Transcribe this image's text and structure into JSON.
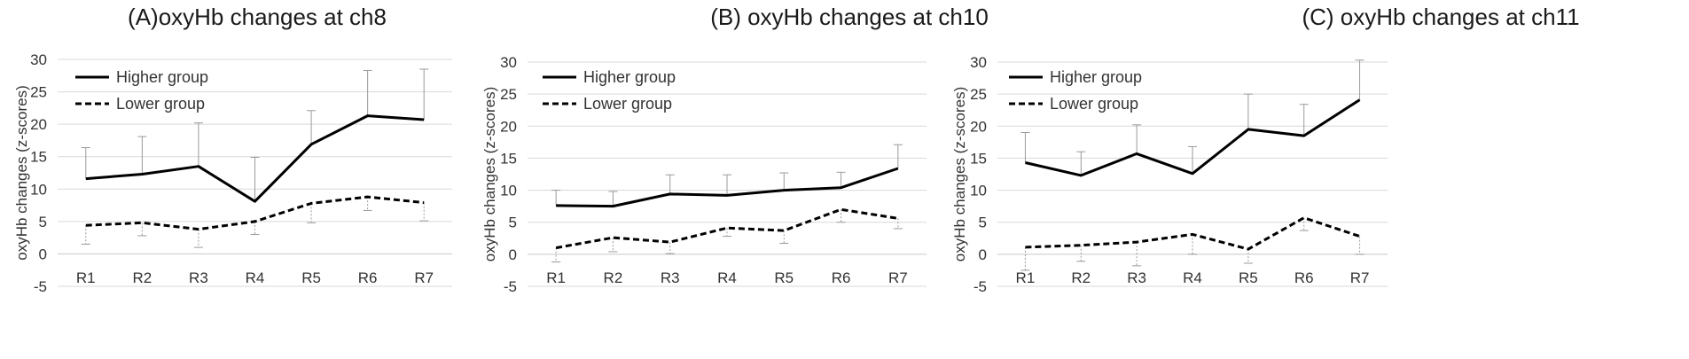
{
  "chart_data": [
    {
      "type": "line",
      "title": "(A)oxyHb changes at ch8",
      "ylabel": "oxyHb changes (z-scores)",
      "categories": [
        "R1",
        "R2",
        "R3",
        "R4",
        "R5",
        "R6",
        "R7"
      ],
      "yticks": [
        "-5",
        "0",
        "5",
        "10",
        "15",
        "20",
        "25",
        "30"
      ],
      "ylim": [
        -5,
        30
      ],
      "grid": "horizontal",
      "legend_position": "top-left",
      "series": [
        {
          "name": "Higher group",
          "style": "solid",
          "values": [
            11.6,
            12.3,
            13.5,
            8.1,
            16.9,
            21.3,
            20.7
          ],
          "error": [
            4.8,
            5.8,
            6.7,
            6.8,
            5.2,
            7.0,
            7.8
          ]
        },
        {
          "name": "Lower group",
          "style": "dashed",
          "values": [
            4.4,
            4.8,
            3.8,
            5.0,
            7.8,
            8.8,
            7.9
          ],
          "error": [
            2.9,
            2.0,
            2.8,
            2.0,
            3.0,
            2.1,
            2.8
          ]
        }
      ]
    },
    {
      "type": "line",
      "title": "(B) oxyHb changes at ch10",
      "ylabel": "oxyHb changes (z-scores)",
      "categories": [
        "R1",
        "R2",
        "R3",
        "R4",
        "R5",
        "R6",
        "R7"
      ],
      "yticks": [
        "-5",
        "0",
        "5",
        "10",
        "15",
        "20",
        "25",
        "30"
      ],
      "ylim": [
        -5,
        30
      ],
      "grid": "horizontal",
      "legend_position": "top-left",
      "series": [
        {
          "name": "Higher group",
          "style": "solid",
          "values": [
            7.6,
            7.5,
            9.4,
            9.2,
            10.0,
            10.4,
            13.4
          ],
          "error": [
            2.4,
            2.3,
            3.0,
            3.2,
            2.7,
            2.4,
            3.7
          ]
        },
        {
          "name": "Lower group",
          "style": "dashed",
          "values": [
            1.0,
            2.6,
            1.9,
            4.1,
            3.7,
            7.0,
            5.6
          ],
          "error": [
            2.2,
            2.2,
            1.8,
            1.3,
            2.0,
            2.0,
            1.6
          ]
        }
      ]
    },
    {
      "type": "line",
      "title": "(C) oxyHb changes at ch11",
      "ylabel": "oxyHb changes (z-scores)",
      "categories": [
        "R1",
        "R2",
        "R3",
        "R4",
        "R5",
        "R6",
        "R7"
      ],
      "yticks": [
        "-5",
        "0",
        "5",
        "10",
        "15",
        "20",
        "25",
        "30"
      ],
      "ylim": [
        -5,
        30
      ],
      "grid": "horizontal",
      "legend_position": "top-left",
      "series": [
        {
          "name": "Higher group",
          "style": "solid",
          "values": [
            14.3,
            12.3,
            15.7,
            12.6,
            19.5,
            18.5,
            24.1
          ],
          "error": [
            4.7,
            3.7,
            4.5,
            4.2,
            5.5,
            4.9,
            6.2
          ]
        },
        {
          "name": "Lower group",
          "style": "dashed",
          "values": [
            1.1,
            1.4,
            1.9,
            3.1,
            0.8,
            5.7,
            2.8
          ],
          "error": [
            3.6,
            2.5,
            3.7,
            3.1,
            2.2,
            2.0,
            2.8
          ]
        }
      ]
    }
  ]
}
